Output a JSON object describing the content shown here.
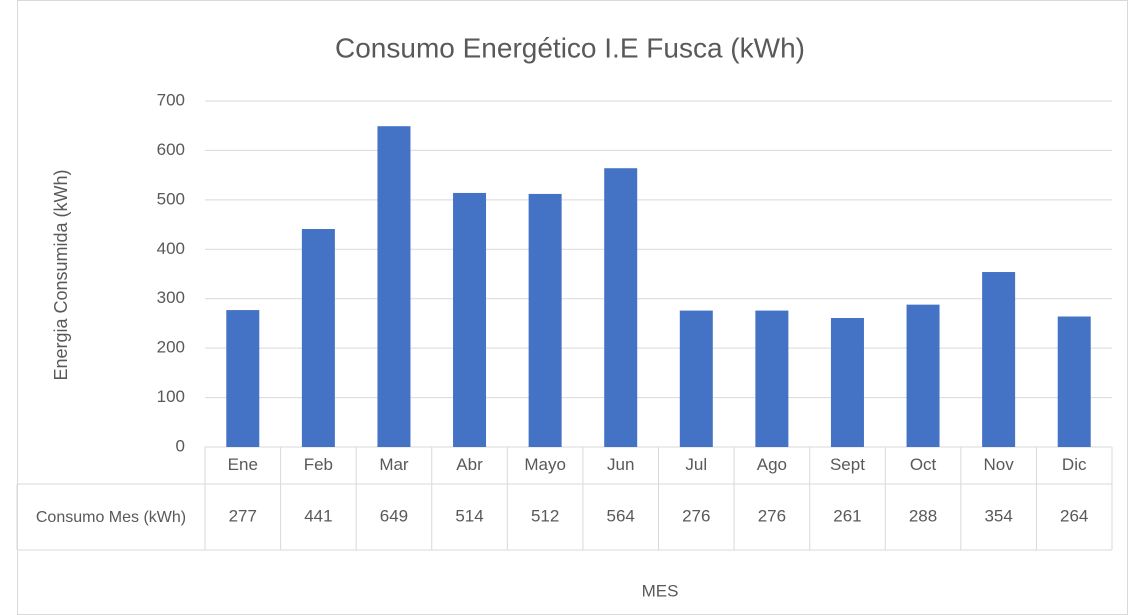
{
  "chart_data": {
    "type": "bar",
    "title": "Consumo Energético I.E Fusca (kWh)",
    "x_label": "MES",
    "y_label": "Energia Consumida (kWh)",
    "categories": [
      "Ene",
      "Feb",
      "Mar",
      "Abr",
      "Mayo",
      "Jun",
      "Jul",
      "Ago",
      "Sept",
      "Oct",
      "Nov",
      "Dic"
    ],
    "series": [
      {
        "name": "Consumo Mes (kWh)",
        "color": "#4472c4",
        "values": [
          277,
          441,
          649,
          514,
          512,
          564,
          276,
          276,
          261,
          288,
          354,
          264
        ]
      }
    ],
    "ylim": [
      0,
      700
    ],
    "yticks": [
      0,
      100,
      200,
      300,
      400,
      500,
      600,
      700
    ],
    "grid": true,
    "data_table": true
  }
}
